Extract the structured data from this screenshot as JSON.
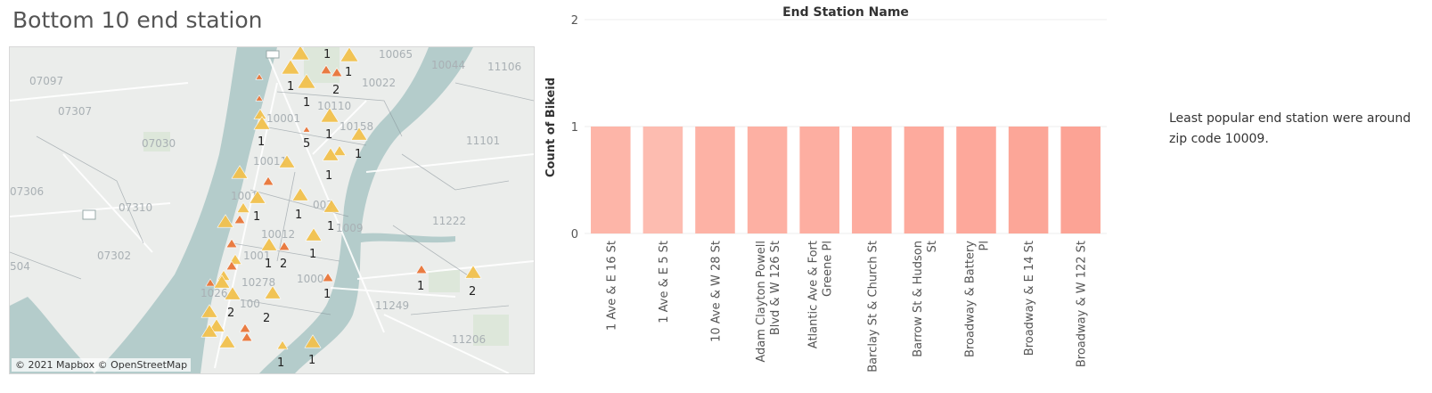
{
  "page": {
    "title": "Bottom 10 end station"
  },
  "map": {
    "attribution": "© 2021 Mapbox © OpenStreetMap",
    "zip_labels": [
      "10065",
      "10044",
      "11106",
      "07097",
      "10022",
      "07307",
      "10001",
      "10110",
      "10158",
      "07030",
      "11101",
      "10011",
      "07306",
      "1001",
      "07310",
      "003",
      "1009",
      "11222",
      "10012",
      "07302",
      "1001",
      "1000",
      "10278",
      "1026",
      "11249",
      "11206",
      "504",
      "100"
    ],
    "marker_color_large": "#f2c14e",
    "marker_color_small": "#e9763a",
    "count_labels": [
      "1",
      "1",
      "2",
      "1",
      "1",
      "1",
      "5",
      "1",
      "1",
      "1",
      "1",
      "1",
      "1",
      "1",
      "2",
      "1",
      "2",
      "1",
      "2",
      "2",
      "1",
      "1",
      "1"
    ]
  },
  "chart_data": {
    "type": "bar",
    "title": "End Station Name",
    "ylabel": "Count of Bikeid",
    "ylim": [
      0,
      2
    ],
    "yticks": [
      0,
      1,
      2
    ],
    "categories": [
      "1 Ave & E 16 St",
      "1 Ave & E 5 St",
      "10 Ave & W 28 St",
      "Adam Clayton Powell Blvd & W 126 St",
      "Atlantic Ave & Fort Greene Pl",
      "Barclay St & Church St",
      "Barrow St & Hudson St",
      "Broadway & Battery Pl",
      "Broadway & E 14 St",
      "Broadway & W 122 St"
    ],
    "category_lines": [
      [
        "1 Ave & E 16 St"
      ],
      [
        "1 Ave & E 5 St"
      ],
      [
        "10 Ave & W 28 St"
      ],
      [
        "Adam Clayton Powell",
        "Blvd & W 126 St"
      ],
      [
        "Atlantic Ave & Fort",
        "Greene Pl"
      ],
      [
        "Barclay St & Church St"
      ],
      [
        "Barrow St & Hudson",
        "St"
      ],
      [
        "Broadway & Battery",
        "Pl"
      ],
      [
        "Broadway & E 14 St"
      ],
      [
        "Broadway & W 122 St"
      ]
    ],
    "values": [
      1,
      1,
      1,
      1,
      1,
      1,
      1,
      1,
      1,
      1
    ],
    "colors": [
      "#fdb5a8",
      "#fdbcb0",
      "#fdb2a5",
      "#fdb0a3",
      "#fdaea1",
      "#fdac9f",
      "#fdaa9d",
      "#fda89b",
      "#fca698",
      "#fca395"
    ],
    "grid": true
  },
  "annotation": {
    "note": "Least popular end station were around zip code 10009."
  }
}
